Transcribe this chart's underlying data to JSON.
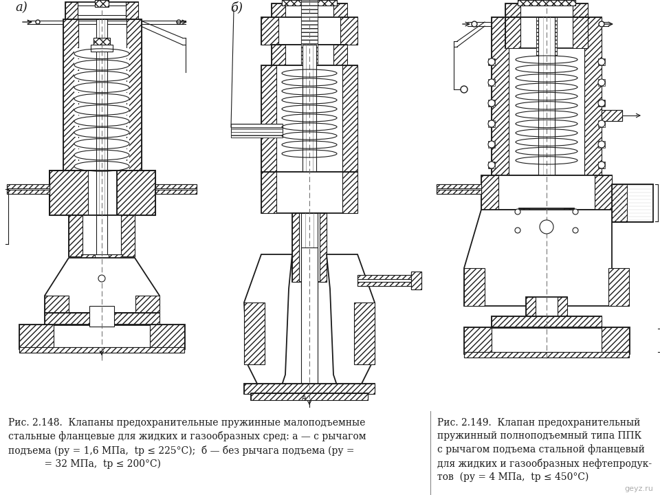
{
  "bg_color": "#ffffff",
  "fig_label_a": "а)",
  "fig_label_b": "б)",
  "caption_left": "Рис. 2.148.  Клапаны предохранительные пружинные малоподъемные\nстальные фланцевые для жидких и газообразных сред: а — с рычагом\nподъема (ру = 1,6 МПа,  tр ≤ 225°С);  б — без рычага подъема (ру =\n            = 32 МПа,  tр ≤ 200°С)",
  "caption_right": "Рис. 2.149.  Клапан предохранительный\nпружинный полноподъемный типа ППК\nс рычагом подъема стальной фланцевый\nдля жидких и газообразных нефтепродук-\nтов  (ру = 4 МПа,  tр ≤ 450°С)",
  "watermark": "geyz.ru",
  "line_color": "#1a1a1a",
  "caption_fontsize": 10.0,
  "label_fontsize": 13,
  "italic_label_fontsize": 11
}
